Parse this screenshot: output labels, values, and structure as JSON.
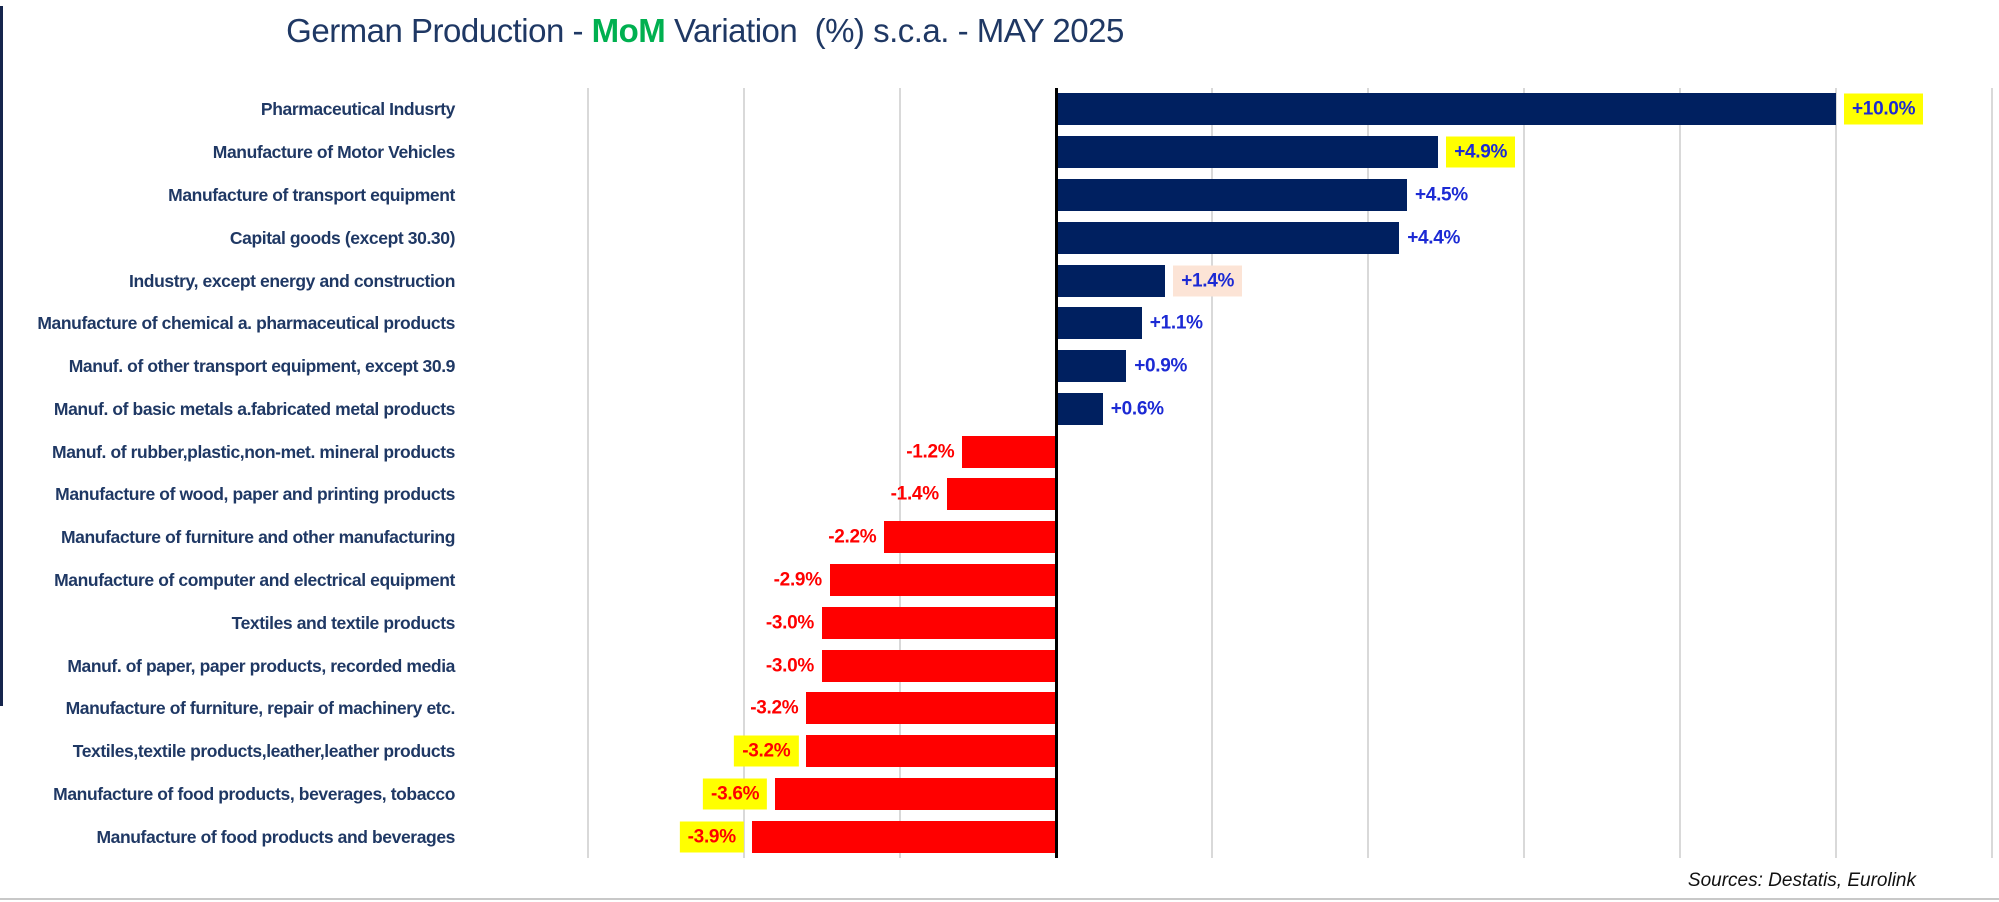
{
  "title": {
    "prefix": "German Production - ",
    "highlight": "MoM",
    "suffix": " Variation  (%) s.c.a. - MAY 2025"
  },
  "source_note": "Sources: Destatis, Eurolink",
  "colors": {
    "bar_positive": "#002060",
    "bar_negative": "#FF0000",
    "value_text_positive": "#1C2AD4",
    "value_text_negative": "#FF0000",
    "highlight_yellow": "#FFFF00",
    "highlight_peach": "#FCE4D6",
    "title_navy": "#1F3864",
    "title_green": "#00B050",
    "category_label": "#1F3864",
    "gridline": "#D9D9D9",
    "zero_axis": "#000000"
  },
  "chart_data": {
    "type": "bar",
    "orientation": "horizontal",
    "title": "German Production - MoM Variation (%) s.c.a. - MAY 2025",
    "xlabel": "",
    "ylabel": "",
    "xlim": [
      -7.7,
      12.1
    ],
    "grid": {
      "visible": true,
      "min": -6,
      "max": 12,
      "step": 2
    },
    "legend_position": "none",
    "categories": [
      "Pharmaceutical Indusrty",
      "Manufacture of Motor Vehicles",
      "Manufacture of transport equipment",
      "Capital goods (except 30.30)",
      "Industry, except energy and construction",
      "Manufacture of chemical a. pharmaceutical products",
      "Manuf. of other transport equipment, except 30.9",
      "Manuf. of basic metals a.fabricated metal products",
      "Manuf. of rubber,plastic,non-met. mineral products",
      "Manufacture of wood, paper and printing products",
      "Manufacture of furniture and other manufacturing",
      "Manufacture of computer and electrical equipment",
      "Textiles and textile products",
      "Manuf. of paper, paper products, recorded media",
      "Manufacture of furniture, repair of machinery etc.",
      "Textiles,textile products,leather,leather products",
      "Manufacture of food products, beverages, tobacco",
      "Manufacture of food products and beverages"
    ],
    "values": [
      10.0,
      4.9,
      4.5,
      4.4,
      1.4,
      1.1,
      0.9,
      0.6,
      -1.2,
      -1.4,
      -2.2,
      -2.9,
      -3.0,
      -3.0,
      -3.2,
      -3.2,
      -3.6,
      -3.9
    ],
    "value_labels": [
      "+10.0%",
      "+4.9%",
      "+4.5%",
      "+4.4%",
      "+1.4%",
      "+1.1%",
      "+0.9%",
      "+0.6%",
      "-1.2%",
      "-1.4%",
      "-2.2%",
      "-2.9%",
      "-3.0%",
      "-3.0%",
      "-3.2%",
      "-3.2%",
      "-3.6%",
      "-3.9%"
    ],
    "label_highlights": [
      "yellow",
      "yellow",
      "none",
      "none",
      "peach",
      "none",
      "none",
      "none",
      "none",
      "none",
      "none",
      "none",
      "none",
      "none",
      "none",
      "yellow",
      "yellow",
      "yellow"
    ]
  }
}
